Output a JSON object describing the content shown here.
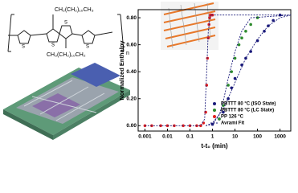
{
  "structure": {
    "top_chain": "CH₂(CH₂)₁₀CH₃",
    "bottom_chain": "CH₃(CH₂)₁₀CH₂",
    "repeat": "n",
    "atoms": [
      "S",
      "S",
      "S",
      "S"
    ]
  },
  "chart_data": {
    "type": "scatter",
    "xlabel": "t-t₀ (min)",
    "ylabel": "Normalized Enthalpy",
    "xlim": [
      0.0005,
      3000
    ],
    "xticks": [
      0.001,
      0.01,
      0.1,
      1,
      10,
      100,
      1000
    ],
    "xscale": "log",
    "ylim": [
      -0.04,
      0.86
    ],
    "yticks": [
      {
        "value": 0,
        "label": "0.00"
      },
      {
        "value": 0.2,
        "label": "0.20"
      },
      {
        "value": 0.4,
        "label": "0.40"
      },
      {
        "value": 0.6,
        "label": "0.60"
      },
      {
        "value": 0.8,
        "label": "0.80"
      }
    ],
    "legend": "lower right",
    "series": [
      {
        "name": "PBTTT 80 °C (ISO State)",
        "color": "#1a1a7a",
        "style": "points",
        "x": [
          1,
          2,
          3,
          5,
          7,
          10,
          20,
          30,
          50,
          100,
          200,
          300,
          500,
          1000
        ],
        "values": [
          0.01,
          0.05,
          0.1,
          0.2,
          0.28,
          0.35,
          0.45,
          0.5,
          0.55,
          0.63,
          0.7,
          0.74,
          0.78,
          0.82
        ]
      },
      {
        "name": "PBTTT 80 °C (LC State)",
        "color": "#2e8b2e",
        "style": "points",
        "x": [
          2,
          3,
          5,
          7,
          10,
          15,
          20,
          30,
          50,
          100
        ],
        "values": [
          0.05,
          0.15,
          0.3,
          0.4,
          0.5,
          0.6,
          0.65,
          0.7,
          0.75,
          0.8
        ]
      },
      {
        "name": "PP 126 °C",
        "color": "#e02020",
        "style": "points",
        "x": [
          0.001,
          0.002,
          0.005,
          0.01,
          0.02,
          0.05,
          0.1,
          0.2,
          0.3,
          0.4,
          0.5,
          0.55,
          0.6,
          0.65,
          0.7,
          0.75,
          0.8,
          0.9,
          1
        ],
        "values": [
          0,
          0,
          0,
          0,
          0,
          0,
          0,
          0,
          0,
          0.02,
          0.1,
          0.3,
          0.5,
          0.65,
          0.75,
          0.8,
          0.82,
          0.82,
          0.82
        ]
      },
      {
        "name": "Avrami Fit",
        "color": "#1a1a7a",
        "style": "dashed",
        "x": [
          0.001,
          0.3,
          0.45,
          0.55,
          0.65,
          0.8,
          2,
          3000,
          null,
          0.5,
          1,
          2,
          3,
          5,
          10,
          20,
          50,
          3000,
          null,
          0.5,
          1,
          3,
          10,
          30,
          100,
          300,
          1000,
          3000
        ],
        "values": [
          0,
          0,
          0.05,
          0.4,
          0.7,
          0.82,
          0.82,
          0.82,
          null,
          0,
          0.01,
          0.08,
          0.18,
          0.35,
          0.55,
          0.7,
          0.8,
          0.82,
          null,
          0,
          0.02,
          0.12,
          0.32,
          0.5,
          0.64,
          0.74,
          0.8,
          0.82
        ]
      }
    ]
  }
}
